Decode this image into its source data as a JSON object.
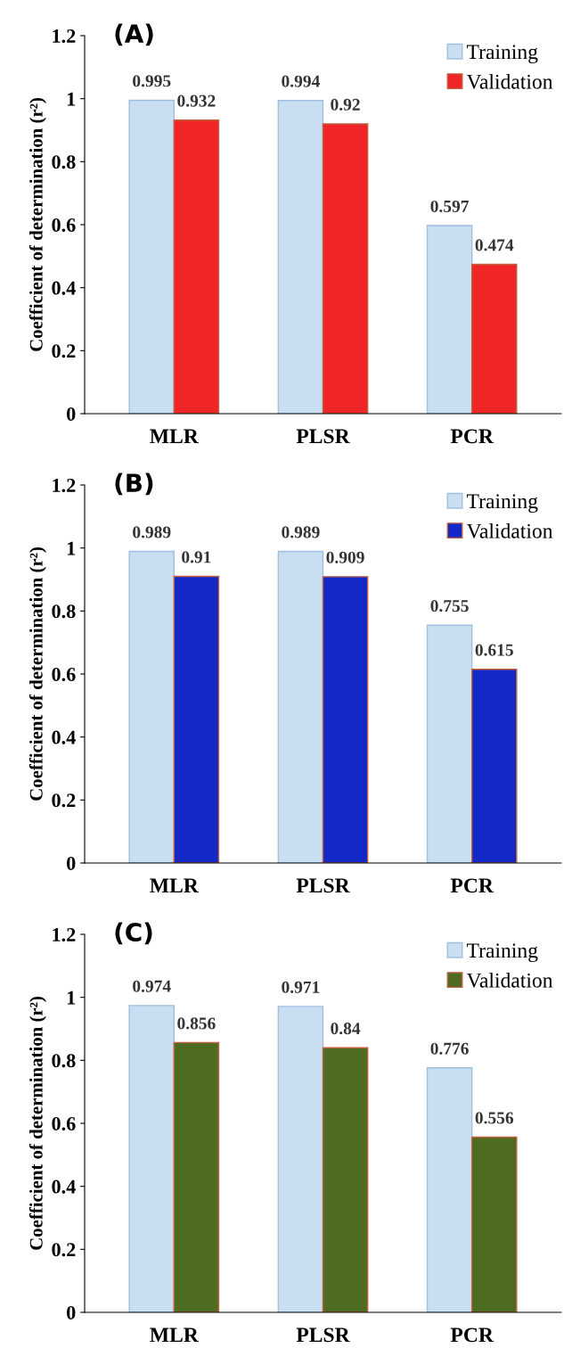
{
  "chart_data": [
    {
      "type": "bar",
      "title": "(A)",
      "ylabel": "Coefficient of determination (r²)",
      "categories": [
        "MLR",
        "PLSR",
        "PCR"
      ],
      "series": [
        {
          "name": "Training",
          "color": "#c9def0",
          "values": [
            0.995,
            0.994,
            0.597
          ]
        },
        {
          "name": "Validation",
          "color": "#f02525",
          "values": [
            0.932,
            0.92,
            0.474
          ]
        }
      ],
      "ylim": [
        0,
        1.2
      ],
      "yticks": [
        0,
        0.2,
        0.4,
        0.6,
        0.8,
        1,
        1.2
      ],
      "data_labels": true,
      "legend": "top right",
      "grid": false
    },
    {
      "type": "bar",
      "title": "(B)",
      "ylabel": "Coefficient of determination (r²)",
      "categories": [
        "MLR",
        "PLSR",
        "PCR"
      ],
      "series": [
        {
          "name": "Training",
          "color": "#c9def0",
          "values": [
            0.989,
            0.989,
            0.755
          ]
        },
        {
          "name": "Validation",
          "color": "#1428c8",
          "values": [
            0.91,
            0.909,
            0.615
          ]
        }
      ],
      "ylim": [
        0,
        1.2
      ],
      "yticks": [
        0,
        0.2,
        0.4,
        0.6,
        0.8,
        1,
        1.2
      ],
      "data_labels": true,
      "legend": "top right",
      "grid": false
    },
    {
      "type": "bar",
      "title": "(C)",
      "ylabel": "Coefficient of determination (r²)",
      "categories": [
        "MLR",
        "PLSR",
        "PCR"
      ],
      "series": [
        {
          "name": "Training",
          "color": "#c9def0",
          "values": [
            0.974,
            0.971,
            0.776
          ]
        },
        {
          "name": "Validation",
          "color": "#4e6b22",
          "values": [
            0.856,
            0.84,
            0.556
          ]
        }
      ],
      "ylim": [
        0,
        1.2
      ],
      "yticks": [
        0,
        0.2,
        0.4,
        0.6,
        0.8,
        1,
        1.2
      ],
      "data_labels": true,
      "legend": "top right",
      "grid": false
    }
  ]
}
